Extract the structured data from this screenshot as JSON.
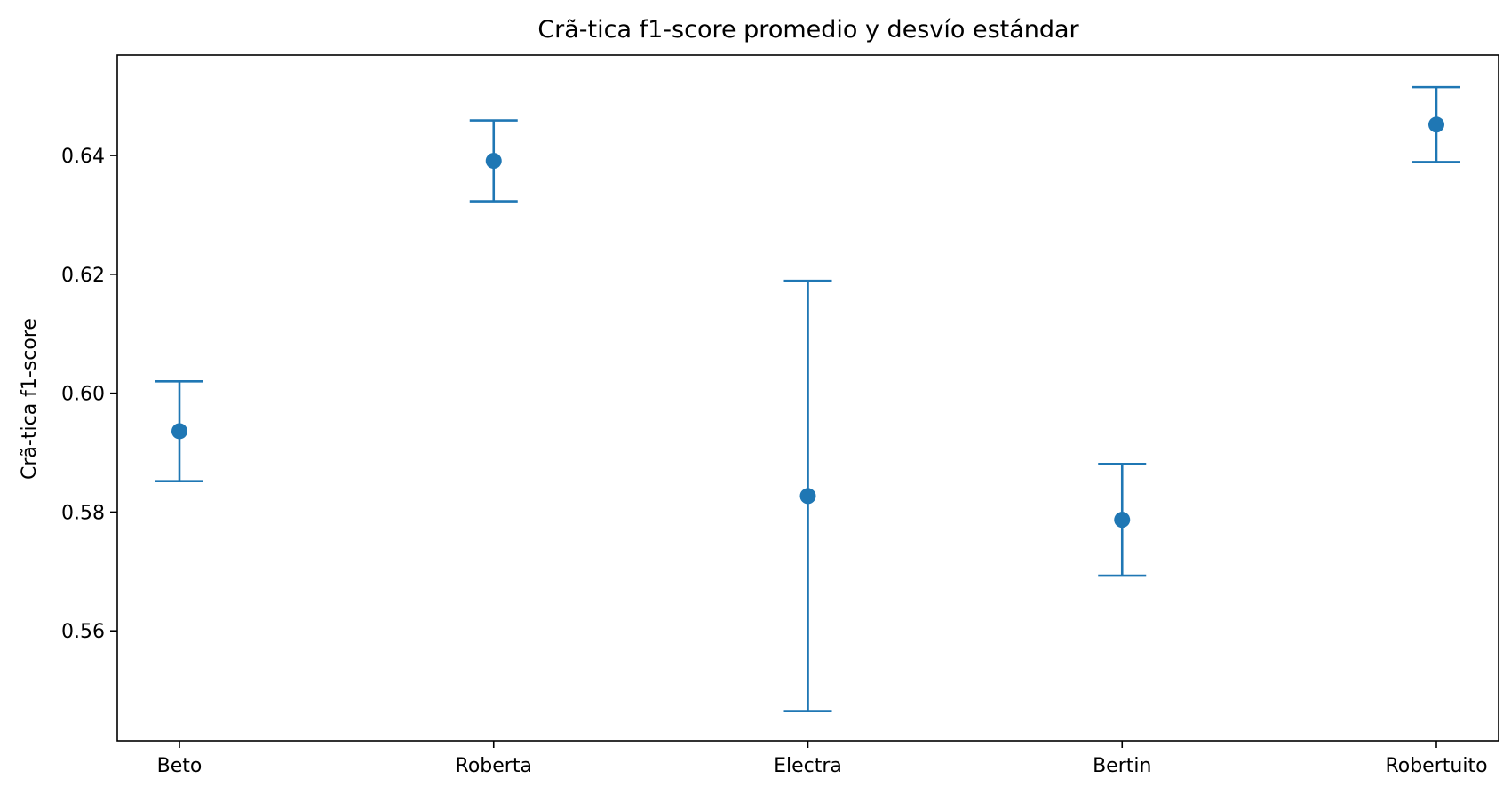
{
  "chart_data": {
    "type": "scatter",
    "title": "Crã-tica f1-score promedio y desvío estándar",
    "xlabel": "",
    "ylabel": "Crã-tica f1-score",
    "categories": [
      "Beto",
      "Roberta",
      "Electra",
      "Bertin",
      "Robertuito"
    ],
    "series": [
      {
        "values": [
          0.5936,
          0.6391,
          0.5827,
          0.5787,
          0.6452
        ],
        "error_low": [
          0.5852,
          0.6323,
          0.5465,
          0.5693,
          0.6389
        ],
        "error_high": [
          0.602,
          0.6459,
          0.6189,
          0.5881,
          0.6515
        ]
      }
    ],
    "ylim": [
      0.5415,
      0.6569
    ],
    "yticks": [
      "0.56",
      "0.58",
      "0.60",
      "0.62",
      "0.64"
    ],
    "ytick_values": [
      0.56,
      0.58,
      0.6,
      0.62,
      0.64
    ],
    "grid": false,
    "color": "#1f77b4"
  }
}
